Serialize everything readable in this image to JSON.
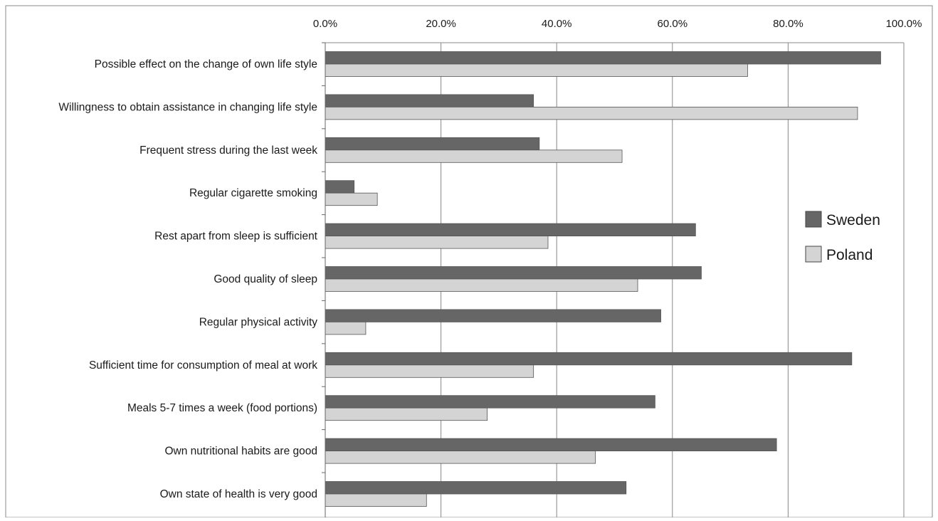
{
  "chart_data": {
    "type": "bar",
    "orientation": "horizontal",
    "x_axis_position": "top",
    "xlim": [
      0,
      100
    ],
    "x_ticks": [
      0,
      20,
      40,
      60,
      80,
      100
    ],
    "x_tick_labels": [
      "0.0%",
      "20.0%",
      "40.0%",
      "60.0%",
      "80.0%",
      "100.0%"
    ],
    "grid": true,
    "legend_position": "right",
    "categories": [
      "Possible effect on the change of own life style",
      "Willingness to obtain assistance in changing life style",
      "Frequent stress during the last week",
      "Regular cigarette smoking",
      "Rest apart from sleep is sufficient",
      "Good quality of sleep",
      "Regular physical activity",
      "Sufficient time for consumption of meal at work",
      "Meals 5-7 times a week (food portions)",
      "Own nutritional habits are good",
      "Own state of health is very good"
    ],
    "series": [
      {
        "name": "Sweden",
        "color": "#666666",
        "values": [
          96,
          36,
          37,
          5,
          64,
          65,
          58,
          91,
          57,
          78,
          52
        ]
      },
      {
        "name": "Poland",
        "color": "#d4d4d4",
        "values": [
          73,
          92,
          51.3,
          9,
          38.5,
          54,
          7,
          36,
          28,
          46.7,
          17.5
        ]
      }
    ]
  }
}
